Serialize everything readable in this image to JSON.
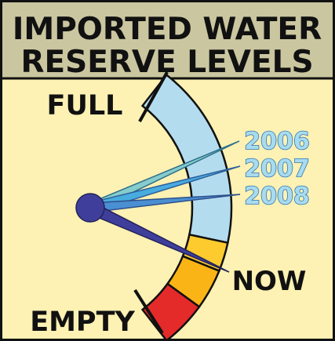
{
  "header": {
    "title_lines": [
      "IMPORTED WATER",
      "RESERVE LEVELS"
    ]
  },
  "gauge": {
    "full_label": "FULL",
    "empty_label": "EMPTY",
    "needles": [
      {
        "label": "2006"
      },
      {
        "label": "2007"
      },
      {
        "label": "2008"
      },
      {
        "label": "NOW"
      }
    ]
  }
}
